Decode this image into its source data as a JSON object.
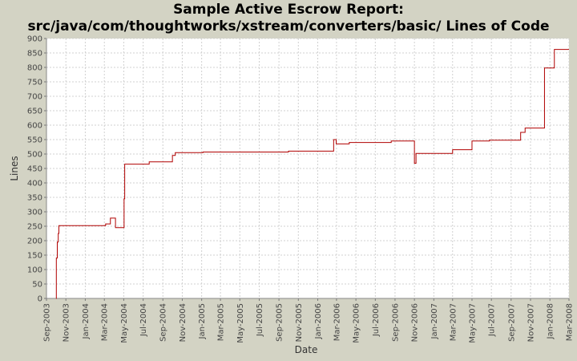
{
  "chart_data": {
    "type": "line",
    "title_line1": "Sample Active Escrow Report:",
    "title_line2": "src/java/com/thoughtworks/xstream/converters/basic/ Lines of Code",
    "xlabel": "Date",
    "ylabel": "Lines",
    "ylim": [
      0,
      900
    ],
    "yticks": [
      0,
      50,
      100,
      150,
      200,
      250,
      300,
      350,
      400,
      450,
      500,
      550,
      600,
      650,
      700,
      750,
      800,
      850,
      900
    ],
    "xlim": [
      "2003-09-01",
      "2008-03-01"
    ],
    "xticks": [
      "Sep-2003",
      "Nov-2003",
      "Jan-2004",
      "Mar-2004",
      "May-2004",
      "Jul-2004",
      "Sep-2004",
      "Nov-2004",
      "Jan-2005",
      "Mar-2005",
      "May-2005",
      "Jul-2005",
      "Sep-2005",
      "Nov-2005",
      "Jan-2006",
      "Mar-2006",
      "May-2006",
      "Jul-2006",
      "Sep-2006",
      "Nov-2006",
      "Jan-2007",
      "Mar-2007",
      "May-2007",
      "Jul-2007",
      "Sep-2007",
      "Nov-2007",
      "Jan-2008",
      "Mar-2008"
    ],
    "grid": true,
    "line_color": "#b00000",
    "series": [
      {
        "step": true,
        "points": [
          [
            "2003-10-01",
            0
          ],
          [
            "2003-10-02",
            140
          ],
          [
            "2003-10-05",
            195
          ],
          [
            "2003-10-08",
            225
          ],
          [
            "2003-10-10",
            252
          ],
          [
            "2004-03-05",
            252
          ],
          [
            "2004-03-05",
            258
          ],
          [
            "2004-03-20",
            258
          ],
          [
            "2004-03-20",
            278
          ],
          [
            "2004-04-05",
            278
          ],
          [
            "2004-04-05",
            245
          ],
          [
            "2004-05-01",
            245
          ],
          [
            "2004-05-02",
            345
          ],
          [
            "2004-05-04",
            465
          ],
          [
            "2004-07-20",
            465
          ],
          [
            "2004-07-20",
            473
          ],
          [
            "2004-10-01",
            473
          ],
          [
            "2004-10-01",
            495
          ],
          [
            "2004-10-10",
            505
          ],
          [
            "2005-01-05",
            505
          ],
          [
            "2005-01-05",
            507
          ],
          [
            "2005-10-01",
            507
          ],
          [
            "2005-10-01",
            510
          ],
          [
            "2006-02-20",
            510
          ],
          [
            "2006-02-20",
            550
          ],
          [
            "2006-02-28",
            550
          ],
          [
            "2006-02-28",
            535
          ],
          [
            "2006-04-10",
            535
          ],
          [
            "2006-04-10",
            540
          ],
          [
            "2006-08-20",
            540
          ],
          [
            "2006-08-20",
            545
          ],
          [
            "2006-11-01",
            545
          ],
          [
            "2006-11-01",
            468
          ],
          [
            "2006-11-06",
            468
          ],
          [
            "2006-11-06",
            502
          ],
          [
            "2007-03-01",
            502
          ],
          [
            "2007-03-01",
            515
          ],
          [
            "2007-05-01",
            515
          ],
          [
            "2007-05-01",
            545
          ],
          [
            "2007-06-25",
            545
          ],
          [
            "2007-06-25",
            548
          ],
          [
            "2007-10-01",
            548
          ],
          [
            "2007-10-01",
            575
          ],
          [
            "2007-10-15",
            575
          ],
          [
            "2007-10-15",
            590
          ],
          [
            "2007-12-15",
            590
          ],
          [
            "2007-12-15",
            798
          ],
          [
            "2008-01-15",
            798
          ],
          [
            "2008-01-15",
            862
          ],
          [
            "2008-03-01",
            862
          ]
        ]
      }
    ]
  }
}
